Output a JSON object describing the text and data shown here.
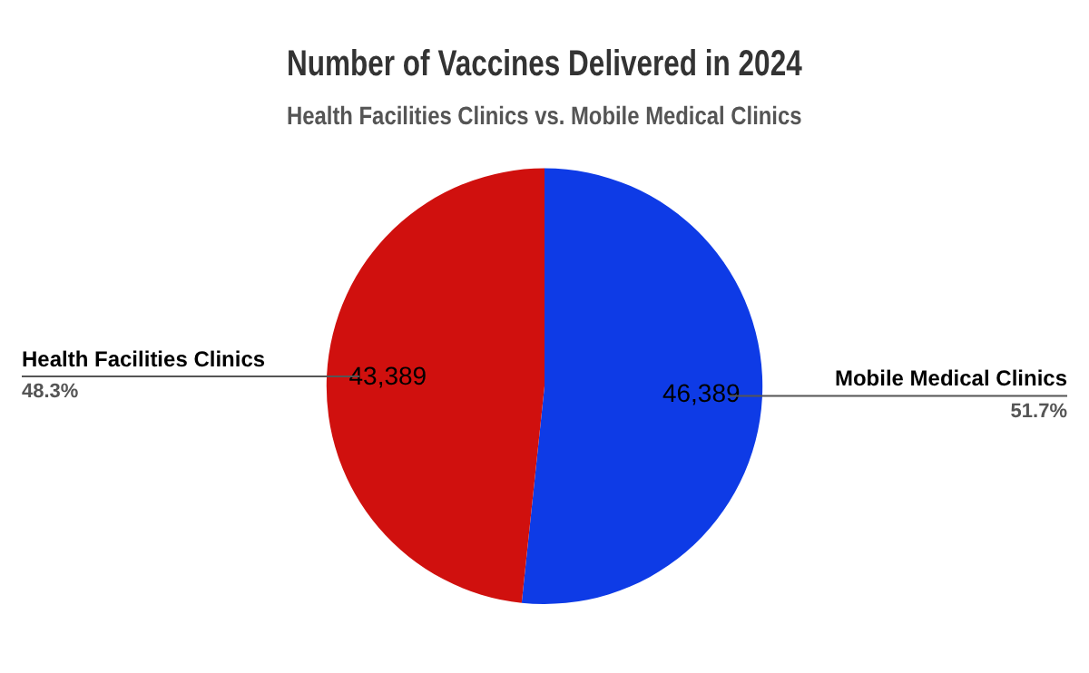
{
  "chart_data": {
    "type": "pie",
    "title": "Number of Vaccines Delivered in 2024",
    "subtitle": "Health Facilities Clinics vs. Mobile Medical Clinics",
    "categories": [
      "Mobile Medical Clinics",
      "Health Facilities Clinics"
    ],
    "values": [
      46389,
      43389
    ],
    "colors": [
      "#0e3be6",
      "#d0100e"
    ],
    "value_labels": [
      "46,389",
      "43,389"
    ],
    "annotations": [
      {
        "text": "51.7%",
        "x": "Mobile Medical Clinics"
      },
      {
        "text": "48.3%",
        "x": "Health Facilities Clinics"
      }
    ],
    "legend": false
  }
}
